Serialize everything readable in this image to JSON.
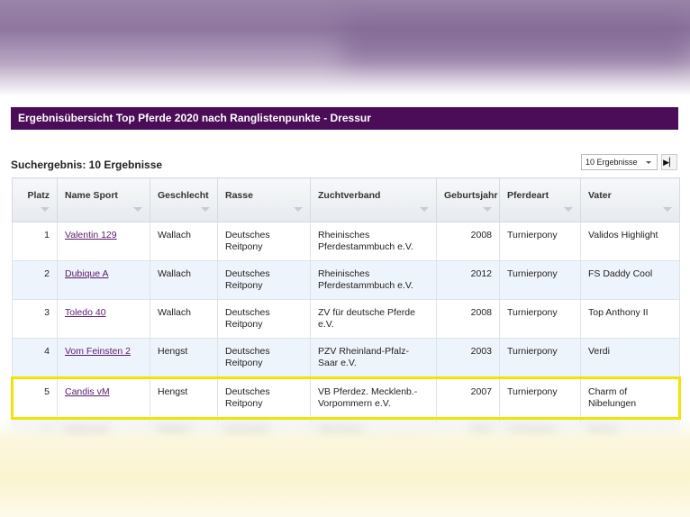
{
  "header": {
    "title": "Ergebnisübersicht Top Pferde 2020 nach Ranglistenpunkte - Dressur"
  },
  "search": {
    "result": "Suchergebnis: 10 Ergebnisse",
    "page_size": "10 Ergebnisse"
  },
  "table": {
    "columns": [
      "Platz",
      "Name Sport",
      "Geschlecht",
      "Rasse",
      "Zuchtverband",
      "Geburtsjahr",
      "Pferdeart",
      "Vater"
    ],
    "rows": [
      [
        "1",
        "Valentin 129",
        "Wallach",
        "Deutsches Reitpony",
        "Rheinisches Pferdestammbuch e.V.",
        "2008",
        "Turnierpony",
        "Validos Highlight"
      ],
      [
        "2",
        "Dubique A",
        "Wallach",
        "Deutsches Reitpony",
        "Rheinisches Pferdestammbuch e.V.",
        "2012",
        "Turnierpony",
        "FS Daddy Cool"
      ],
      [
        "3",
        "Toledo 40",
        "Wallach",
        "Deutsches Reitpony",
        "ZV für deutsche Pferde e.V.",
        "2008",
        "Turnierpony",
        "Top Anthony II"
      ],
      [
        "4",
        "Vom Feinsten 2",
        "Hengst",
        "Deutsches Reitpony",
        "PZV Rheinland-Pfalz-Saar e.V.",
        "2003",
        "Turnierpony",
        "Verdi"
      ],
      [
        "5",
        "Candis vM",
        "Hengst",
        "Deutsches Reitpony",
        "VB Pferdez. Mecklenb.-Vorpommern e.V.",
        "2007",
        "Turnierpony",
        "Charm of Nibelungen"
      ],
      [
        "6",
        "Nelson KF",
        "Wallach",
        "Deutsches Reitpony",
        "VB d.Pony- u.Kleinpferdez. Hannover e.V.",
        "2012",
        "Turnierpony",
        "Nemax"
      ]
    ]
  }
}
